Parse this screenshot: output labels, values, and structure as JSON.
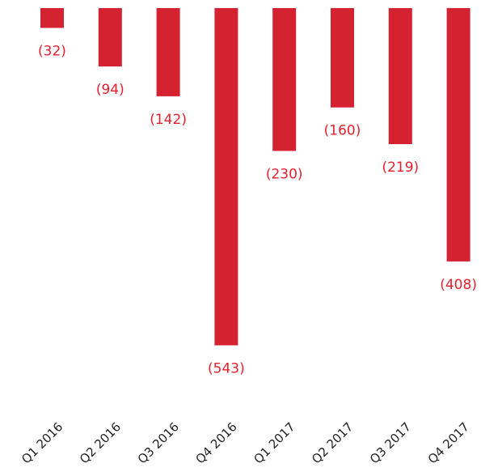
{
  "chart_data": {
    "type": "bar",
    "categories": [
      "Q1 2016",
      "Q2 2016",
      "Q3 2016",
      "Q4 2016",
      "Q1 2017",
      "Q2 2017",
      "Q3 2017",
      "Q4 2017"
    ],
    "values": [
      -32,
      -94,
      -142,
      -543,
      -230,
      -160,
      -219,
      -408
    ],
    "value_labels": [
      "(32)",
      "(94)",
      "(142)",
      "(543)",
      "(230)",
      "(160)",
      "(219)",
      "(408)"
    ],
    "ylim": [
      -543,
      0
    ],
    "grid": false,
    "legend": "none",
    "colors": {
      "bar": "#d42230",
      "label": "#e8202e",
      "tick": "#222222"
    }
  }
}
